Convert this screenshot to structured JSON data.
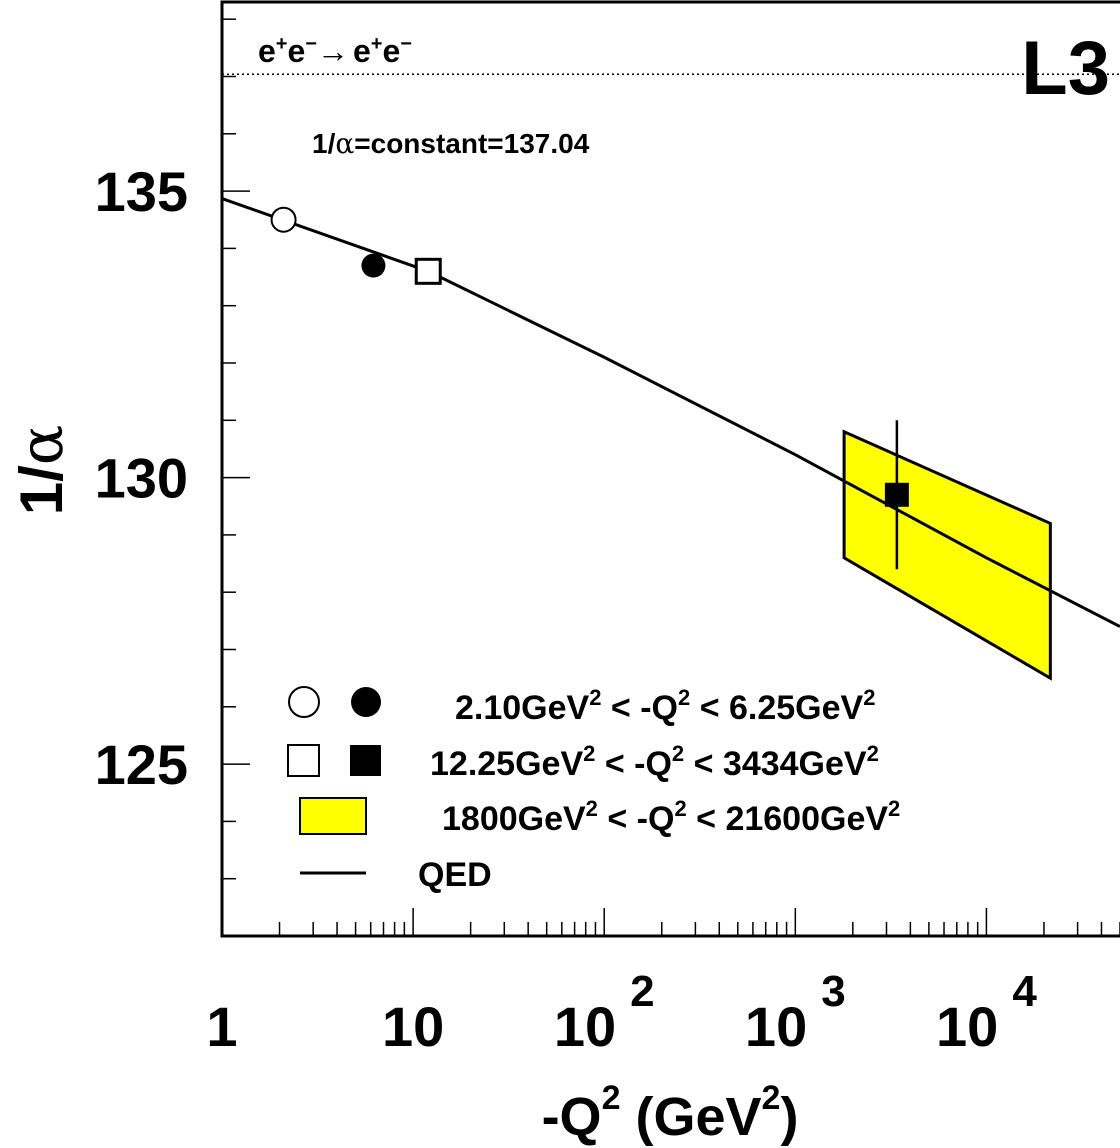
{
  "chart_data": {
    "type": "scatter",
    "title": "",
    "process_label": {
      "lead": "e",
      "second": "e",
      "arrow": "→",
      "third": "e",
      "fourth": "e",
      "plus": "+",
      "minus": "−"
    },
    "experiment_label": "L3",
    "constant_line": {
      "label_prefix": "1/",
      "label_symbol": "α",
      "label_suffix": "=constant=137.04",
      "value": 137.04
    },
    "xlabel": {
      "prefix": "-Q",
      "sup1": "2",
      "mid": " (GeV",
      "sup2": "2",
      "suffix": ")"
    },
    "ylabel": {
      "prefix": "1/",
      "symbol": "α"
    },
    "xscale": "log",
    "xlim": [
      1,
      50000
    ],
    "ylim": [
      122.0,
      138.3
    ],
    "x_ticks": [
      {
        "value": 1,
        "base": "1",
        "exp": ""
      },
      {
        "value": 10,
        "base": "10",
        "exp": ""
      },
      {
        "value": 100,
        "base": "10",
        "exp": "2"
      },
      {
        "value": 1000,
        "base": "10",
        "exp": "3"
      },
      {
        "value": 10000,
        "base": "10",
        "exp": "4"
      }
    ],
    "y_ticks": [
      {
        "value": 125,
        "label": "125"
      },
      {
        "value": 130,
        "label": "130"
      },
      {
        "value": 135,
        "label": "135"
      }
    ],
    "series": [
      {
        "name": "2.10GeV² < -Q² < 6.25GeV²",
        "points": [
          {
            "x": 2.1,
            "y": 134.5,
            "marker": "open-circle"
          },
          {
            "x": 6.2,
            "y": 133.7,
            "yerr": 0.2,
            "marker": "filled-circle"
          }
        ]
      },
      {
        "name": "12.25GeV² < -Q² < 3434GeV²",
        "points": [
          {
            "x": 12.0,
            "y": 133.6,
            "marker": "open-square"
          },
          {
            "x": 3400,
            "y": 129.7,
            "yerr_low": 1.3,
            "yerr_high": 1.3,
            "marker": "filled-square"
          }
        ]
      },
      {
        "name": "1800GeV² < -Q² < 21600GeV²",
        "band": [
          {
            "x": 1800,
            "y": 130.8
          },
          {
            "x": 21600,
            "y": 129.2
          },
          {
            "x": 21600,
            "y": 126.5
          },
          {
            "x": 1800,
            "y": 128.6
          }
        ],
        "color": "#ffff00"
      },
      {
        "name": "QED",
        "line": [
          {
            "x": 1,
            "y": 134.87
          },
          {
            "x": 12,
            "y": 133.6
          },
          {
            "x": 100,
            "y": 132.1
          },
          {
            "x": 1000,
            "y": 130.4
          },
          {
            "x": 10000,
            "y": 128.6
          },
          {
            "x": 50000,
            "y": 127.4
          }
        ]
      }
    ],
    "legend": {
      "position": "bottom-left",
      "entries": [
        {
          "markers": [
            "open-circle",
            "filled-circle"
          ],
          "lo": "2.10GeV",
          "mid": " < -Q",
          "hi": " < 6.25GeV",
          "sup": "2"
        },
        {
          "markers": [
            "open-square",
            "filled-square"
          ],
          "lo": "12.25GeV",
          "mid": " < -Q",
          "hi": " < 3434GeV",
          "sup": "2"
        },
        {
          "markers": [
            "yellow-box"
          ],
          "lo": "1800GeV",
          "mid": " < -Q",
          "hi": " < 21600GeV",
          "sup": "2"
        },
        {
          "markers": [
            "line"
          ],
          "label": "QED"
        }
      ]
    },
    "grid": false
  }
}
